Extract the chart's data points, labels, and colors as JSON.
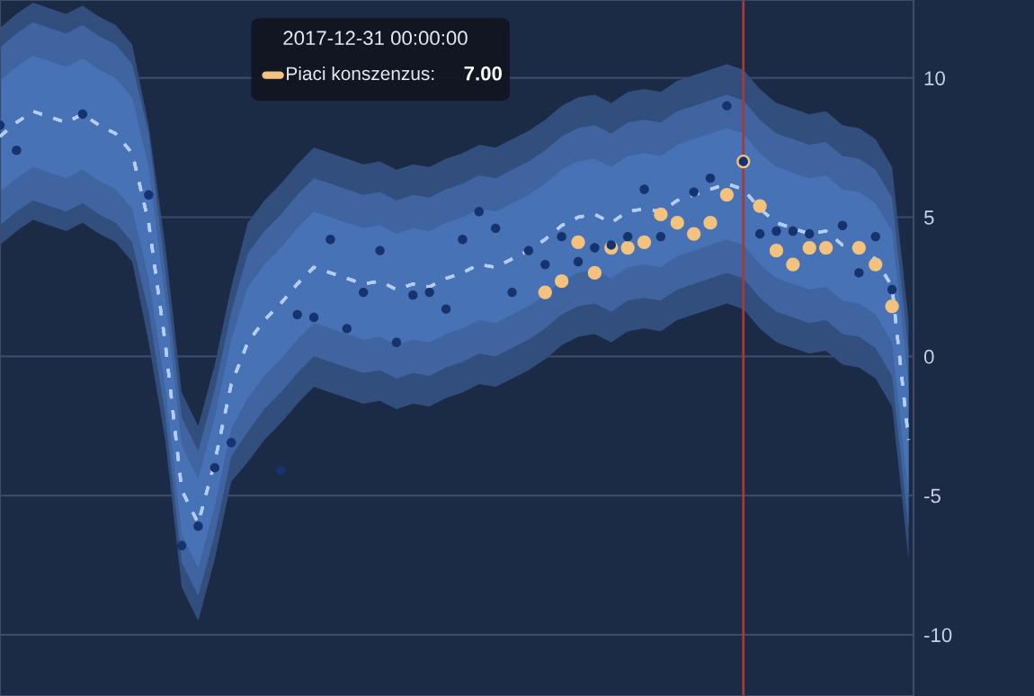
{
  "chart_data": {
    "type": "line",
    "categories": [
      null,
      null,
      null,
      null,
      null,
      null,
      null,
      null,
      null,
      null,
      null,
      null,
      null,
      null,
      null,
      null,
      null,
      null,
      null,
      null,
      null,
      null,
      null,
      null,
      null,
      null,
      null,
      null,
      null,
      null,
      null,
      null,
      null,
      null,
      null,
      null,
      null,
      null,
      null,
      null,
      null,
      null,
      null,
      null,
      null,
      null,
      null,
      null,
      null,
      null,
      null,
      null,
      null,
      null,
      null,
      null
    ],
    "series": [
      {
        "color": "#b4cdf0",
        "line_style": "dashed",
        "values": [
          7.9,
          8.4,
          8.8,
          8.6,
          8.4,
          8.7,
          8.3,
          8.0,
          7.3,
          4.8,
          0.5,
          -4.8,
          -6.0,
          -3.8,
          -1.0,
          0.5,
          1.3,
          1.9,
          2.6,
          3.2,
          3.0,
          2.8,
          2.6,
          2.7,
          2.4,
          2.6,
          2.5,
          2.8,
          3.0,
          3.3,
          3.2,
          3.5,
          3.8,
          4.2,
          4.7,
          5.0,
          5.1,
          4.8,
          5.2,
          5.3,
          5.2,
          5.6,
          5.8,
          6.0,
          6.2,
          6.0,
          5.3,
          4.8,
          4.6,
          4.4,
          4.5,
          4.0,
          3.9,
          3.5,
          2.5,
          -3.0
        ],
        "lower": [
          4.0,
          4.5,
          4.9,
          4.7,
          4.5,
          4.8,
          4.4,
          4.1,
          3.4,
          0.5,
          -3.0,
          -8.3,
          -9.5,
          -7.3,
          -4.5,
          -3.8,
          -3.0,
          -2.4,
          -1.7,
          -1.1,
          -1.3,
          -1.5,
          -1.7,
          -1.6,
          -1.9,
          -1.7,
          -1.8,
          -1.5,
          -1.3,
          -1.0,
          -1.1,
          -0.8,
          -0.5,
          -0.1,
          0.4,
          0.7,
          0.8,
          0.5,
          0.9,
          1.0,
          0.9,
          1.3,
          1.5,
          1.7,
          1.9,
          1.7,
          1.0,
          0.5,
          0.3,
          0.1,
          0.2,
          -0.3,
          -0.4,
          -0.8,
          -1.8,
          -7.3
        ],
        "upper": [
          11.8,
          12.3,
          12.7,
          12.5,
          12.3,
          12.6,
          12.2,
          11.9,
          11.2,
          8.3,
          4.0,
          -1.3,
          -2.5,
          -0.3,
          2.5,
          4.8,
          5.6,
          6.2,
          6.9,
          7.5,
          7.3,
          7.1,
          6.9,
          7.0,
          6.7,
          6.9,
          6.8,
          7.1,
          7.3,
          7.6,
          7.5,
          7.8,
          8.1,
          8.5,
          9.0,
          9.3,
          9.4,
          9.1,
          9.5,
          9.6,
          9.5,
          9.9,
          10.1,
          10.3,
          10.5,
          10.3,
          9.6,
          9.1,
          8.9,
          8.7,
          8.8,
          8.3,
          8.2,
          7.8,
          6.8,
          1.3
        ]
      },
      {
        "color": "#b4cdf0",
        "line_style": "dashed",
        "values": [
          7.9,
          8.4,
          8.8,
          8.6,
          8.4,
          8.7,
          8.3,
          8.0,
          7.3,
          4.8,
          0.5,
          -4.8,
          -6.0,
          -3.8,
          -1.0,
          0.5,
          1.3,
          1.9,
          2.6,
          3.2,
          3.0,
          2.8,
          2.6,
          2.7,
          2.4,
          2.6,
          2.5,
          2.8,
          3.0,
          3.3,
          3.2,
          3.5,
          3.8,
          4.2,
          4.7,
          5.0,
          5.1,
          4.8,
          5.2,
          5.3,
          5.2,
          5.6,
          5.8,
          6.0,
          6.2,
          6.0,
          5.3,
          4.8,
          4.6,
          4.4,
          4.5,
          4.0,
          3.9,
          3.5,
          2.5,
          -3.0
        ],
        "lower": [
          4.7,
          5.2,
          5.6,
          5.4,
          5.2,
          5.5,
          5.1,
          4.8,
          4.1,
          1.6,
          -2.1,
          -7.4,
          -8.6,
          -6.4,
          -3.6,
          -2.7,
          -1.9,
          -1.3,
          -0.6,
          0.0,
          -0.2,
          -0.4,
          -0.6,
          -0.5,
          -0.8,
          -0.6,
          -0.7,
          -0.4,
          -0.2,
          0.1,
          0.0,
          0.3,
          0.6,
          1.0,
          1.5,
          1.8,
          1.9,
          1.6,
          2.0,
          2.1,
          2.0,
          2.4,
          2.6,
          2.8,
          3.0,
          2.8,
          2.1,
          1.6,
          1.4,
          1.2,
          1.3,
          0.8,
          0.7,
          0.3,
          -0.7,
          -6.2
        ],
        "upper": [
          11.1,
          11.6,
          12.0,
          11.8,
          11.6,
          11.9,
          11.5,
          11.2,
          10.5,
          8.0,
          3.1,
          -2.2,
          -3.4,
          -1.2,
          1.6,
          3.7,
          4.5,
          5.1,
          5.8,
          6.4,
          6.2,
          6.0,
          5.8,
          5.9,
          5.6,
          5.8,
          5.7,
          6.0,
          6.2,
          6.5,
          6.4,
          6.7,
          7.0,
          7.4,
          7.9,
          8.2,
          8.3,
          8.0,
          8.4,
          8.5,
          8.4,
          8.8,
          9.0,
          9.2,
          9.4,
          9.2,
          8.5,
          8.0,
          7.8,
          7.6,
          7.7,
          7.2,
          7.1,
          6.7,
          5.7,
          0.2
        ]
      },
      {
        "color": "#b4cdf0",
        "line_style": "dashed",
        "lower": [
          5.9,
          6.4,
          6.8,
          6.6,
          6.4,
          6.7,
          6.3,
          6.0,
          5.3,
          2.8,
          -1.1,
          -6.4,
          -7.6,
          -5.4,
          -2.6,
          -1.5,
          -0.7,
          -0.1,
          0.6,
          1.2,
          1.0,
          0.8,
          0.6,
          0.7,
          0.4,
          0.6,
          0.5,
          0.8,
          1.0,
          1.3,
          1.2,
          1.5,
          1.8,
          2.2,
          2.7,
          3.0,
          3.1,
          2.8,
          3.2,
          3.3,
          3.2,
          3.6,
          3.8,
          4.0,
          4.2,
          4.0,
          3.3,
          2.8,
          2.6,
          2.4,
          2.5,
          2.0,
          1.9,
          1.5,
          0.5,
          -5.0
        ],
        "upper": [
          9.9,
          10.4,
          10.8,
          10.6,
          10.4,
          10.7,
          10.3,
          10.0,
          9.3,
          6.8,
          2.1,
          -3.2,
          -4.4,
          -2.2,
          0.6,
          2.5,
          3.3,
          3.9,
          4.6,
          5.2,
          5.0,
          4.8,
          4.6,
          4.7,
          4.4,
          4.6,
          4.5,
          4.8,
          5.0,
          5.3,
          5.2,
          5.5,
          5.8,
          6.2,
          6.7,
          7.0,
          7.1,
          6.8,
          7.2,
          7.3,
          7.2,
          7.6,
          7.8,
          8.0,
          8.2,
          8.0,
          7.3,
          6.8,
          6.6,
          6.4,
          6.5,
          6.0,
          5.9,
          5.5,
          4.5,
          -1.0
        ],
        "values": [
          7.9,
          8.4,
          8.8,
          8.6,
          8.4,
          8.7,
          8.3,
          8.0,
          7.3,
          4.8,
          0.5,
          -4.8,
          -6.0,
          -3.8,
          -1.0,
          0.5,
          1.3,
          1.9,
          2.6,
          3.2,
          3.0,
          2.8,
          2.6,
          2.7,
          2.4,
          2.6,
          2.5,
          2.8,
          3.0,
          3.3,
          3.2,
          3.5,
          3.8,
          4.2,
          4.7,
          5.0,
          5.1,
          4.8,
          5.2,
          5.3,
          5.2,
          5.6,
          5.8,
          6.0,
          6.2,
          6.0,
          5.3,
          4.8,
          4.6,
          4.4,
          4.5,
          4.0,
          3.9,
          3.5,
          2.5,
          -3.0
        ]
      },
      {
        "type": "scatter",
        "color": "#16336e",
        "marker": "circle",
        "values": [
          8.3,
          7.4,
          null,
          null,
          null,
          8.7,
          null,
          null,
          null,
          5.8,
          null,
          -6.8,
          -6.1,
          -4.0,
          -3.1,
          null,
          null,
          -4.1,
          1.5,
          1.4,
          4.2,
          1.0,
          2.3,
          3.8,
          0.5,
          2.2,
          2.3,
          1.7,
          4.2,
          5.2,
          4.6,
          2.3,
          3.8,
          3.3,
          4.3,
          3.4,
          3.9,
          4.0,
          4.3,
          6.0,
          4.3,
          null,
          5.9,
          6.4,
          9.0,
          7.0,
          4.4,
          4.5,
          4.5,
          4.4,
          null,
          4.7,
          3.0,
          4.3,
          2.4,
          null
        ]
      },
      {
        "type": "scatter",
        "name": "Piaci konszenzus:",
        "color": "#f2c27e",
        "marker": "circle",
        "values": [
          null,
          null,
          null,
          null,
          null,
          null,
          null,
          null,
          null,
          null,
          null,
          null,
          null,
          null,
          null,
          null,
          null,
          null,
          null,
          null,
          null,
          null,
          null,
          null,
          null,
          null,
          null,
          null,
          null,
          null,
          null,
          null,
          null,
          2.3,
          2.7,
          4.1,
          3.0,
          3.9,
          3.9,
          4.1,
          5.1,
          4.8,
          4.4,
          4.8,
          5.8,
          7.0,
          5.4,
          3.8,
          3.3,
          3.9,
          3.9,
          null,
          3.9,
          3.3,
          1.8,
          null
        ]
      }
    ],
    "annotations": [
      "2017-12-31 00:00:00",
      "7.00"
    ],
    "legend": "top",
    "ylim": [
      -12.2,
      12.8
    ],
    "yticks": [
      -10,
      -5,
      0,
      5,
      10
    ],
    "grid": "y",
    "tick_labels": "y"
  }
}
